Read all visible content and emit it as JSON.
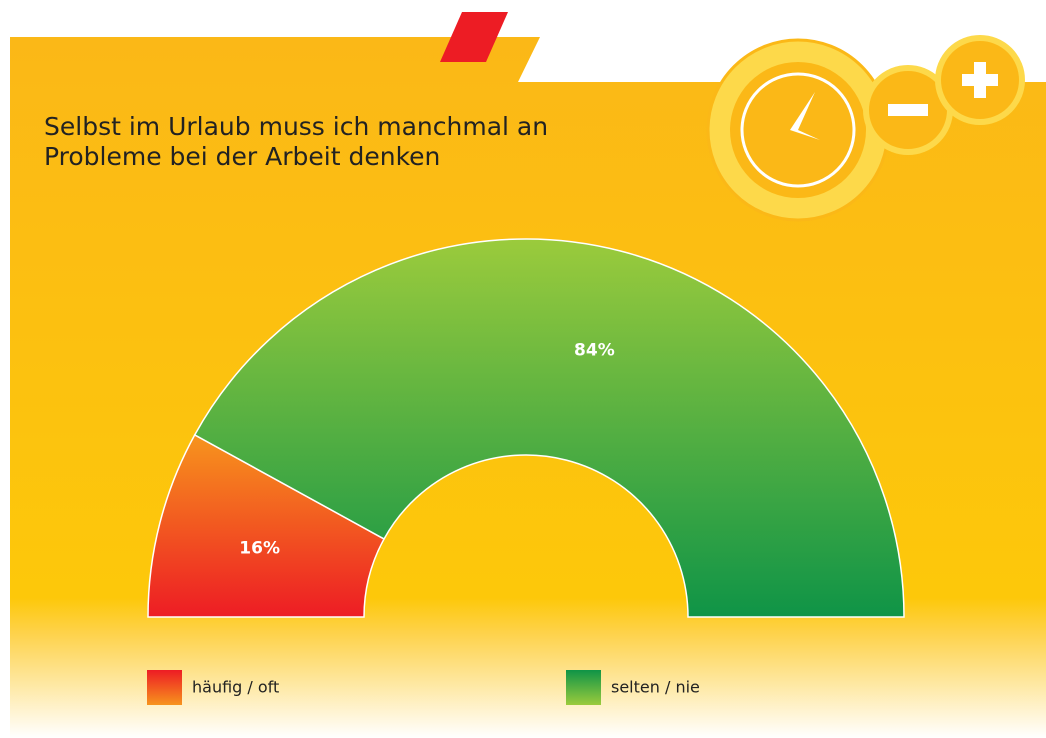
{
  "chart_data": {
    "type": "half-donut",
    "title": "Selbst im Urlaub muss ich manchmal an Probleme bei der Arbeit denken",
    "categories": [
      "häufig / oft",
      "selten / nie"
    ],
    "values": [
      16,
      84
    ],
    "value_labels": [
      "16%",
      "84%"
    ],
    "colors": [
      [
        "#f7941d",
        "#ed1c24"
      ],
      [
        "#9bcb3c",
        "#0f9447"
      ]
    ]
  }
}
